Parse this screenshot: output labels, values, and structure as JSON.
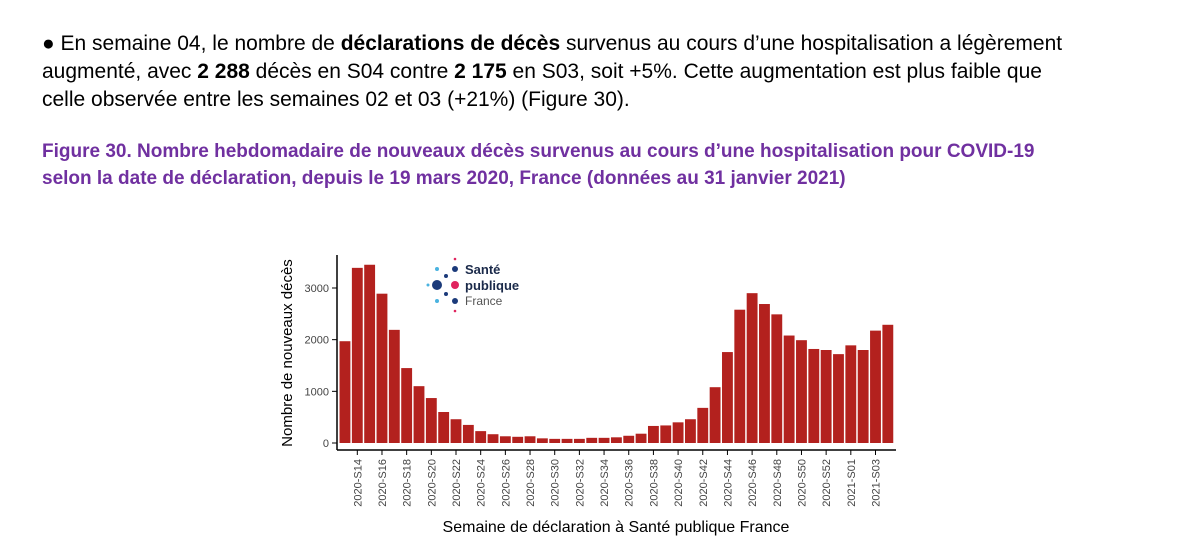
{
  "paragraph": {
    "lines": [
      [
        {
          "text": "● En semaine 04, le nombre de ",
          "bold": false
        },
        {
          "text": "déclarations de décès",
          "bold": true
        },
        {
          "text": " survenus au cours d’une hospitalisation a légèrement",
          "bold": false
        }
      ],
      [
        {
          "text": "augmenté, avec ",
          "bold": false
        },
        {
          "text": "2 288",
          "bold": true
        },
        {
          "text": " décès en S04 contre ",
          "bold": false
        },
        {
          "text": "2 175",
          "bold": true
        },
        {
          "text": " en S03, soit +5%. Cette augmentation est plus faible que",
          "bold": false
        }
      ],
      [
        {
          "text": "celle observée entre les semaines 02 et 03 (+21%) (Figure 30).",
          "bold": false
        }
      ]
    ]
  },
  "caption": {
    "lines": [
      "Figure 30. Nombre hebdomadaire de nouveaux décès survenus au cours d’une hospitalisation pour COVID-19",
      "selon la date de déclaration, depuis le 19 mars 2020, France (données au 31 janvier 2021)"
    ]
  },
  "logo": {
    "line1": "Santé",
    "line2": "publique",
    "line3": "France"
  },
  "chart_data": {
    "type": "bar",
    "color": "#b3211e",
    "y_label": "Nombre de nouveaux décès",
    "x_label": "Semaine de déclaration à Santé publique France",
    "categories": [
      null,
      "2020-S14",
      null,
      "2020-S16",
      null,
      "2020-S18",
      null,
      "2020-S20",
      null,
      "2020-S22",
      null,
      "2020-S24",
      null,
      "2020-S26",
      null,
      "2020-S28",
      null,
      "2020-S30",
      null,
      "2020-S32",
      null,
      "2020-S34",
      null,
      "2020-S36",
      null,
      "2020-S38",
      null,
      "2020-S40",
      null,
      "2020-S42",
      null,
      "2020-S44",
      null,
      "2020-S46",
      null,
      "2020-S48",
      null,
      "2020-S50",
      null,
      "2020-S52",
      null,
      "2021-S01",
      null,
      "2021-S03",
      null
    ],
    "values": [
      1970,
      3390,
      3450,
      2890,
      2190,
      1450,
      1100,
      870,
      600,
      460,
      350,
      230,
      170,
      130,
      120,
      130,
      90,
      80,
      80,
      80,
      100,
      100,
      110,
      140,
      180,
      330,
      340,
      400,
      460,
      680,
      1080,
      1760,
      2580,
      2900,
      2690,
      2490,
      2080,
      1990,
      1820,
      1800,
      1720,
      1890,
      1800,
      2175,
      2288
    ],
    "ylim": [
      0,
      3600
    ],
    "yticks": [
      0,
      1000,
      2000,
      3000
    ]
  }
}
